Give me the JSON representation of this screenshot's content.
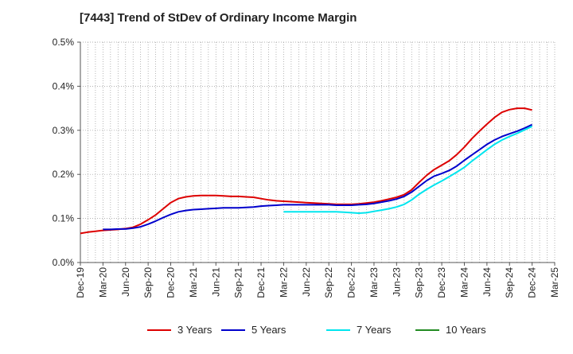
{
  "chart_data": {
    "type": "line",
    "title": "[7443]  Trend of StDev of Ordinary Income Margin",
    "xlabel": "",
    "ylabel": "",
    "x_ticks": [
      "Dec-19",
      "Mar-20",
      "Jun-20",
      "Sep-20",
      "Dec-20",
      "Mar-21",
      "Jun-21",
      "Sep-21",
      "Dec-21",
      "Mar-22",
      "Jun-22",
      "Sep-22",
      "Dec-22",
      "Mar-23",
      "Jun-23",
      "Sep-23",
      "Dec-23",
      "Mar-24",
      "Jun-24",
      "Sep-24",
      "Dec-24",
      "Mar-25"
    ],
    "y_ticks": [
      "0.0%",
      "0.1%",
      "0.2%",
      "0.3%",
      "0.4%",
      "0.5%"
    ],
    "ylim": [
      0,
      0.5
    ],
    "y_unit": "%",
    "grid": true,
    "legend_position": "bottom",
    "series": [
      {
        "name": "3 Years",
        "color": "#dd0000",
        "points": [
          [
            "Dec-19",
            0.066
          ],
          [
            "Jan-20",
            0.069
          ],
          [
            "Feb-20",
            0.071
          ],
          [
            "Mar-20",
            0.073
          ],
          [
            "Apr-20",
            0.074
          ],
          [
            "May-20",
            0.075
          ],
          [
            "Jun-20",
            0.077
          ],
          [
            "Jul-20",
            0.08
          ],
          [
            "Aug-20",
            0.087
          ],
          [
            "Sep-20",
            0.097
          ],
          [
            "Oct-20",
            0.108
          ],
          [
            "Nov-20",
            0.122
          ],
          [
            "Dec-20",
            0.136
          ],
          [
            "Jan-21",
            0.145
          ],
          [
            "Feb-21",
            0.149
          ],
          [
            "Mar-21",
            0.151
          ],
          [
            "Apr-21",
            0.152
          ],
          [
            "May-21",
            0.152
          ],
          [
            "Jun-21",
            0.152
          ],
          [
            "Jul-21",
            0.151
          ],
          [
            "Aug-21",
            0.15
          ],
          [
            "Sep-21",
            0.15
          ],
          [
            "Oct-21",
            0.149
          ],
          [
            "Nov-21",
            0.148
          ],
          [
            "Dec-21",
            0.145
          ],
          [
            "Jan-22",
            0.142
          ],
          [
            "Feb-22",
            0.14
          ],
          [
            "Mar-22",
            0.139
          ],
          [
            "Apr-22",
            0.138
          ],
          [
            "May-22",
            0.137
          ],
          [
            "Jun-22",
            0.136
          ],
          [
            "Jul-22",
            0.135
          ],
          [
            "Aug-22",
            0.134
          ],
          [
            "Sep-22",
            0.133
          ],
          [
            "Oct-22",
            0.132
          ],
          [
            "Nov-22",
            0.132
          ],
          [
            "Dec-22",
            0.132
          ],
          [
            "Jan-23",
            0.133
          ],
          [
            "Feb-23",
            0.135
          ],
          [
            "Mar-23",
            0.137
          ],
          [
            "Apr-23",
            0.14
          ],
          [
            "May-23",
            0.144
          ],
          [
            "Jun-23",
            0.148
          ],
          [
            "Jul-23",
            0.154
          ],
          [
            "Aug-23",
            0.165
          ],
          [
            "Sep-23",
            0.182
          ],
          [
            "Oct-23",
            0.198
          ],
          [
            "Nov-23",
            0.211
          ],
          [
            "Dec-23",
            0.221
          ],
          [
            "Jan-24",
            0.231
          ],
          [
            "Feb-24",
            0.245
          ],
          [
            "Mar-24",
            0.262
          ],
          [
            "Apr-24",
            0.281
          ],
          [
            "May-24",
            0.298
          ],
          [
            "Jun-24",
            0.314
          ],
          [
            "Jul-24",
            0.329
          ],
          [
            "Aug-24",
            0.341
          ],
          [
            "Sep-24",
            0.347
          ],
          [
            "Oct-24",
            0.35
          ],
          [
            "Nov-24",
            0.35
          ],
          [
            "Dec-24",
            0.346
          ]
        ]
      },
      {
        "name": "5 Years",
        "color": "#0000cc",
        "points": [
          [
            "Mar-20",
            0.075
          ],
          [
            "Apr-20",
            0.075
          ],
          [
            "May-20",
            0.076
          ],
          [
            "Jun-20",
            0.076
          ],
          [
            "Jul-20",
            0.078
          ],
          [
            "Aug-20",
            0.081
          ],
          [
            "Sep-20",
            0.087
          ],
          [
            "Oct-20",
            0.094
          ],
          [
            "Nov-20",
            0.102
          ],
          [
            "Dec-20",
            0.109
          ],
          [
            "Jan-21",
            0.115
          ],
          [
            "Feb-21",
            0.118
          ],
          [
            "Mar-21",
            0.12
          ],
          [
            "Apr-21",
            0.121
          ],
          [
            "May-21",
            0.122
          ],
          [
            "Jun-21",
            0.123
          ],
          [
            "Jul-21",
            0.124
          ],
          [
            "Aug-21",
            0.124
          ],
          [
            "Sep-21",
            0.124
          ],
          [
            "Oct-21",
            0.125
          ],
          [
            "Nov-21",
            0.126
          ],
          [
            "Dec-21",
            0.128
          ],
          [
            "Jan-22",
            0.129
          ],
          [
            "Feb-22",
            0.13
          ],
          [
            "Mar-22",
            0.131
          ],
          [
            "Apr-22",
            0.131
          ],
          [
            "May-22",
            0.131
          ],
          [
            "Jun-22",
            0.131
          ],
          [
            "Jul-22",
            0.131
          ],
          [
            "Aug-22",
            0.131
          ],
          [
            "Sep-22",
            0.131
          ],
          [
            "Oct-22",
            0.13
          ],
          [
            "Nov-22",
            0.13
          ],
          [
            "Dec-22",
            0.13
          ],
          [
            "Jan-23",
            0.131
          ],
          [
            "Feb-23",
            0.132
          ],
          [
            "Mar-23",
            0.134
          ],
          [
            "Apr-23",
            0.137
          ],
          [
            "May-23",
            0.14
          ],
          [
            "Jun-23",
            0.144
          ],
          [
            "Jul-23",
            0.15
          ],
          [
            "Aug-23",
            0.16
          ],
          [
            "Sep-23",
            0.173
          ],
          [
            "Oct-23",
            0.186
          ],
          [
            "Nov-23",
            0.196
          ],
          [
            "Dec-23",
            0.202
          ],
          [
            "Jan-24",
            0.209
          ],
          [
            "Feb-24",
            0.219
          ],
          [
            "Mar-24",
            0.232
          ],
          [
            "Apr-24",
            0.244
          ],
          [
            "May-24",
            0.256
          ],
          [
            "Jun-24",
            0.268
          ],
          [
            "Jul-24",
            0.278
          ],
          [
            "Aug-24",
            0.286
          ],
          [
            "Sep-24",
            0.292
          ],
          [
            "Oct-24",
            0.298
          ],
          [
            "Nov-24",
            0.305
          ],
          [
            "Dec-24",
            0.313
          ]
        ]
      },
      {
        "name": "7 Years",
        "color": "#00e5ee",
        "points": [
          [
            "Mar-22",
            0.115
          ],
          [
            "Apr-22",
            0.115
          ],
          [
            "May-22",
            0.115
          ],
          [
            "Jun-22",
            0.115
          ],
          [
            "Jul-22",
            0.115
          ],
          [
            "Aug-22",
            0.115
          ],
          [
            "Sep-22",
            0.115
          ],
          [
            "Oct-22",
            0.115
          ],
          [
            "Nov-22",
            0.114
          ],
          [
            "Dec-22",
            0.113
          ],
          [
            "Jan-23",
            0.112
          ],
          [
            "Feb-23",
            0.113
          ],
          [
            "Mar-23",
            0.116
          ],
          [
            "Apr-23",
            0.119
          ],
          [
            "May-23",
            0.122
          ],
          [
            "Jun-23",
            0.126
          ],
          [
            "Jul-23",
            0.132
          ],
          [
            "Aug-23",
            0.142
          ],
          [
            "Sep-23",
            0.155
          ],
          [
            "Oct-23",
            0.166
          ],
          [
            "Nov-23",
            0.176
          ],
          [
            "Dec-23",
            0.185
          ],
          [
            "Jan-24",
            0.195
          ],
          [
            "Feb-24",
            0.205
          ],
          [
            "Mar-24",
            0.216
          ],
          [
            "Apr-24",
            0.23
          ],
          [
            "May-24",
            0.243
          ],
          [
            "Jun-24",
            0.256
          ],
          [
            "Jul-24",
            0.268
          ],
          [
            "Aug-24",
            0.278
          ],
          [
            "Sep-24",
            0.286
          ],
          [
            "Oct-24",
            0.293
          ],
          [
            "Nov-24",
            0.301
          ],
          [
            "Dec-24",
            0.309
          ]
        ]
      },
      {
        "name": "10 Years",
        "color": "#228b22",
        "points": []
      }
    ]
  }
}
